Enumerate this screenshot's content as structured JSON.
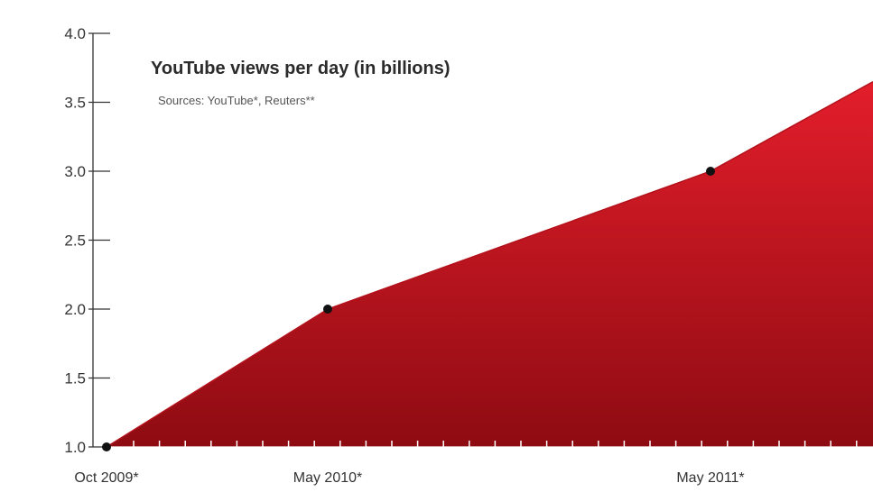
{
  "chart_data": {
    "type": "area",
    "title": "YouTube views per day (in billions)",
    "subtitle": "Sources: YouTube*, Reuters**",
    "x": [
      "Oct 2009*",
      "May 2010*",
      "May 2011*",
      ""
    ],
    "values": [
      1.0,
      2.0,
      3.0,
      3.65
    ],
    "marked_points": [
      0,
      1,
      2
    ],
    "xlabels": [
      "Oct 2009*",
      "May 2010*",
      "May 2011*"
    ],
    "yticks": [
      1.0,
      1.5,
      2.0,
      2.5,
      3.0,
      3.5,
      4.0
    ],
    "ytick_labels": [
      "1.0",
      "1.5",
      "2.0",
      "2.5",
      "3.0",
      "3.5",
      "4.0"
    ],
    "ylim": [
      1.0,
      4.0
    ],
    "grid": false,
    "legend": "none",
    "colors": {
      "fill_top": "#e31e2b",
      "fill_bottom": "#8e0b12",
      "axis": "#333333",
      "tick_mark": "#ffffff",
      "point": "#111111"
    }
  }
}
